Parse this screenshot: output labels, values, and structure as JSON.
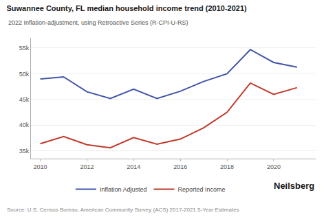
{
  "chart_data": {
    "type": "line",
    "title": "Suwannee County, FL median household income trend (2010-2021)",
    "subtitle": "2022 Inflation-adjustment, using Retroactive Series (R-CPI-U-RS)",
    "annotations": [
      "Source: U.S. Census Bureau, American Community Survey (ACS) 2017-2021 5-Year Estimates",
      "Neilsberg"
    ],
    "x": [
      2010,
      2011,
      2012,
      2013,
      2014,
      2015,
      2016,
      2017,
      2018,
      2019,
      2020,
      2021
    ],
    "series": [
      {
        "name": "Inflation Adjusted",
        "color": "#4055a8",
        "values": [
          49000,
          49400,
          46500,
          45200,
          47000,
          45200,
          46600,
          48500,
          50000,
          54700,
          52200,
          51300
        ]
      },
      {
        "name": "Reported Income",
        "color": "#c0392b",
        "values": [
          36400,
          37800,
          36200,
          35600,
          37600,
          36300,
          37300,
          39500,
          42500,
          48200,
          46000,
          47300
        ]
      }
    ],
    "xlim": [
      2009.6,
      2021.8
    ],
    "xticks": [
      2010,
      2012,
      2014,
      2016,
      2018,
      2020
    ],
    "ylim": [
      33500,
      57000
    ],
    "yticks": [
      {
        "value": 35000,
        "label": "35k"
      },
      {
        "value": 40000,
        "label": "40k"
      },
      {
        "value": 45000,
        "label": "45k"
      },
      {
        "value": 50000,
        "label": "50k"
      },
      {
        "value": 55000,
        "label": "55k"
      }
    ],
    "grid": "y",
    "legend": "bottom"
  }
}
